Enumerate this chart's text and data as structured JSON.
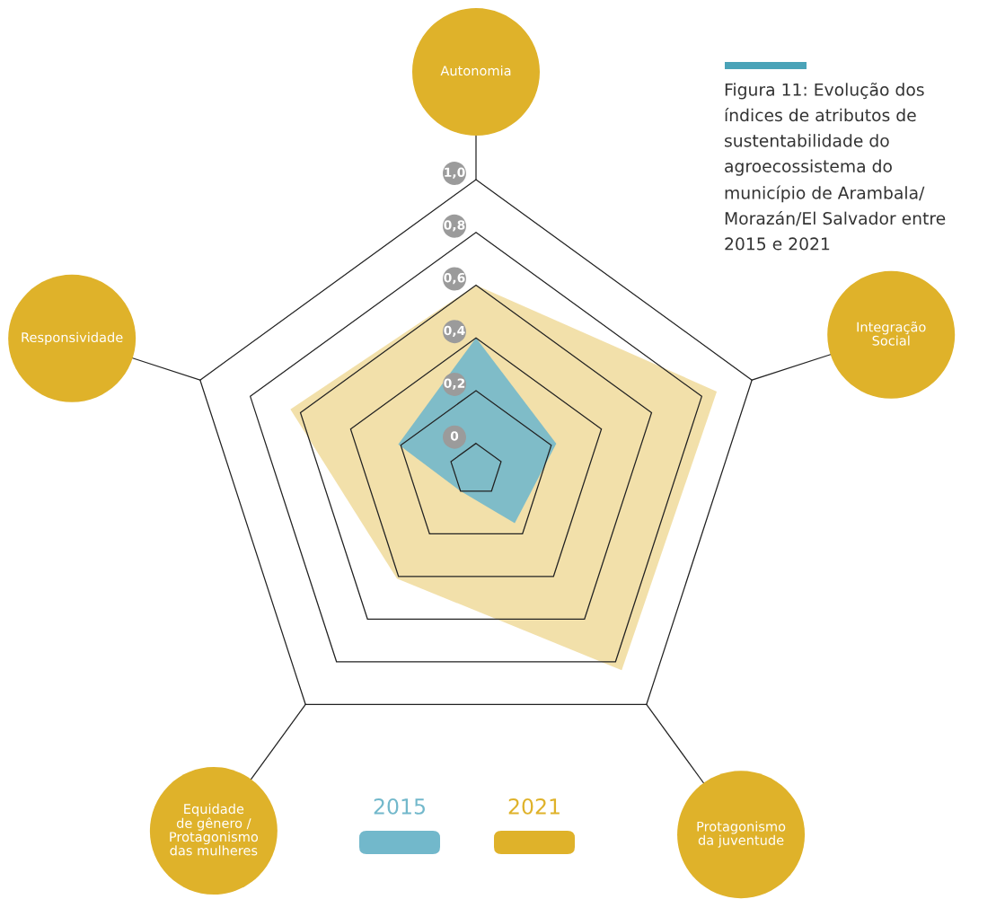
{
  "chart_data": {
    "type": "radar",
    "title": "Figura 11: Evolução dos\níndices de atributos de\nsustentabilidade do\nagroecossistema do\nmunicípio de Arambala/\nMorazán/El Salvador entre\n2015 e 2021",
    "categories": [
      "Autonomia",
      "Integração\nSocial",
      "Protagonismo\nda juventude",
      "Equidade\nde gênero /\nProtagonismo\ndas mulheres",
      "Responsividade"
    ],
    "series": [
      {
        "name": "2015",
        "color": "#72b8cb",
        "values": [
          0.4,
          0.22,
          0.15,
          0,
          0.21
        ]
      },
      {
        "name": "2021",
        "color": "#dfb22a",
        "values": [
          0.6,
          0.86,
          0.84,
          0.41,
          0.64
        ]
      }
    ],
    "ylim": [
      -0.1,
      1.0
    ],
    "yticks": [
      {
        "value": 0,
        "label": "0"
      },
      {
        "value": 0.2,
        "label": "0,2"
      },
      {
        "value": 0.4,
        "label": "0,4"
      },
      {
        "value": 0.6,
        "label": "0,6"
      },
      {
        "value": 0.8,
        "label": "0,8"
      },
      {
        "value": 1.0,
        "label": "1,0"
      }
    ],
    "grid": true,
    "legend": "bottom"
  }
}
